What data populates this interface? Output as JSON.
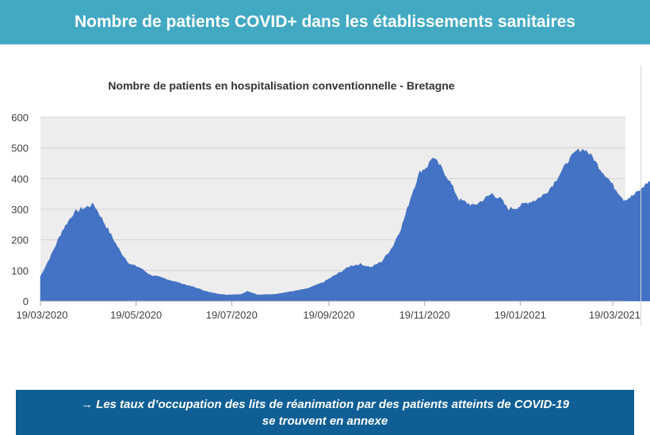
{
  "header": {
    "title": "Nombre de patients COVID+ dans les établissements sanitaires"
  },
  "chart_data": {
    "type": "area",
    "title": "Nombre de patients en hospitalisation conventionnelle - Bretagne",
    "xlabel": "",
    "ylabel": "",
    "ylim": [
      0,
      600
    ],
    "y_ticks": [
      "0",
      "100",
      "200",
      "300",
      "400",
      "500",
      "600"
    ],
    "x_ticks": [
      "19/03/2020",
      "19/05/2020",
      "19/07/2020",
      "19/09/2020",
      "19/11/2020",
      "19/01/2021",
      "19/03/2021"
    ],
    "x_range": [
      "19/03/2020",
      "26/03/2021"
    ],
    "grid": "horizontal",
    "legend": "none",
    "color": "#4472c4",
    "points": [
      [
        "19/03/2020",
        80
      ],
      [
        "26/03/2020",
        150
      ],
      [
        "02/04/2020",
        230
      ],
      [
        "09/04/2020",
        285
      ],
      [
        "14/04/2020",
        300
      ],
      [
        "22/04/2020",
        315
      ],
      [
        "27/04/2020",
        270
      ],
      [
        "03/05/2020",
        215
      ],
      [
        "09/05/2020",
        160
      ],
      [
        "15/05/2020",
        120
      ],
      [
        "21/05/2020",
        110
      ],
      [
        "28/05/2020",
        85
      ],
      [
        "05/06/2020",
        75
      ],
      [
        "15/06/2020",
        60
      ],
      [
        "25/06/2020",
        45
      ],
      [
        "05/07/2020",
        28
      ],
      [
        "15/07/2020",
        20
      ],
      [
        "25/07/2020",
        22
      ],
      [
        "29/07/2020",
        32
      ],
      [
        "05/08/2020",
        20
      ],
      [
        "15/08/2020",
        22
      ],
      [
        "25/08/2020",
        30
      ],
      [
        "05/09/2020",
        40
      ],
      [
        "15/09/2020",
        60
      ],
      [
        "25/09/2020",
        90
      ],
      [
        "03/10/2020",
        115
      ],
      [
        "09/10/2020",
        120
      ],
      [
        "16/10/2020",
        110
      ],
      [
        "23/10/2020",
        130
      ],
      [
        "30/10/2020",
        180
      ],
      [
        "05/11/2020",
        250
      ],
      [
        "11/11/2020",
        350
      ],
      [
        "16/11/2020",
        420
      ],
      [
        "21/11/2020",
        440
      ],
      [
        "24/11/2020",
        470
      ],
      [
        "29/11/2020",
        440
      ],
      [
        "05/12/2020",
        390
      ],
      [
        "11/12/2020",
        330
      ],
      [
        "16/12/2020",
        320
      ],
      [
        "20/12/2020",
        310
      ],
      [
        "25/12/2020",
        325
      ],
      [
        "01/01/2021",
        350
      ],
      [
        "07/01/2021",
        330
      ],
      [
        "11/01/2021",
        300
      ],
      [
        "17/01/2021",
        305
      ],
      [
        "23/01/2021",
        320
      ],
      [
        "29/01/2021",
        330
      ],
      [
        "04/02/2021",
        350
      ],
      [
        "09/02/2021",
        380
      ],
      [
        "14/02/2021",
        420
      ],
      [
        "19/02/2021",
        460
      ],
      [
        "24/02/2021",
        490
      ],
      [
        "01/03/2021",
        495
      ],
      [
        "06/03/2021",
        470
      ],
      [
        "11/03/2021",
        430
      ],
      [
        "16/03/2021",
        400
      ],
      [
        "20/03/2021",
        370
      ],
      [
        "24/03/2021",
        345
      ],
      [
        "26/03/2021",
        330
      ],
      [
        "31/03/2021",
        340
      ],
      [
        "05/04/2021",
        360
      ],
      [
        "10/04/2021",
        385
      ],
      [
        "13/04/2021",
        395
      ],
      [
        "15/04/2021",
        380
      ]
    ]
  },
  "footer": {
    "line1": "→ Les taux d’occupation des lits de réanimation par des patients atteints de COVID-19",
    "line2": "se trouvent en annexe"
  }
}
